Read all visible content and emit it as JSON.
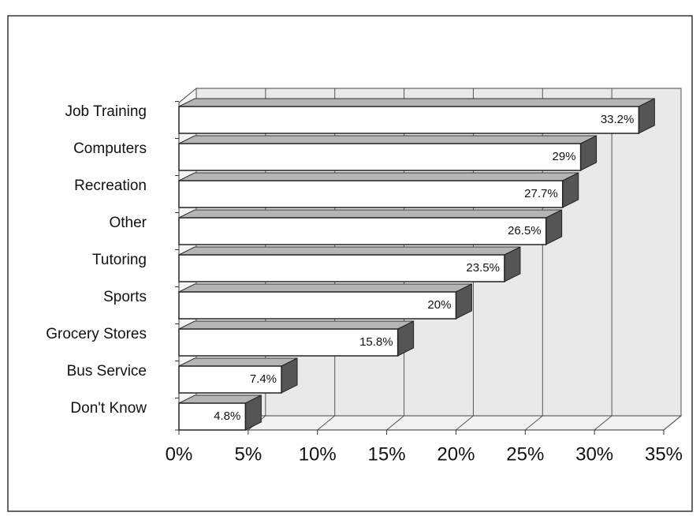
{
  "chart_data": {
    "type": "bar3d_horizontal",
    "categories": [
      "Job Training",
      "Computers",
      "Recreation",
      "Other",
      "Tutoring",
      "Sports",
      "Grocery Stores",
      "Bus Service",
      "Don't Know"
    ],
    "values": [
      33.2,
      29,
      27.7,
      26.5,
      23.5,
      20,
      15.8,
      7.4,
      4.8
    ],
    "value_labels": [
      "33.2%",
      "29%",
      "27.7%",
      "26.5%",
      "23.5%",
      "20%",
      "15.8%",
      "7.4%",
      "4.8%"
    ],
    "color": "#ffffff",
    "xlim": [
      0,
      35
    ],
    "xticks": [
      {
        "value": 0,
        "label": "0%"
      },
      {
        "value": 5,
        "label": "5%"
      },
      {
        "value": 10,
        "label": "10%"
      },
      {
        "value": 15,
        "label": "15%"
      },
      {
        "value": 20,
        "label": "20%"
      },
      {
        "value": 25,
        "label": "25%"
      },
      {
        "value": 30,
        "label": "30%"
      },
      {
        "value": 35,
        "label": "35%"
      }
    ],
    "grid": true
  }
}
